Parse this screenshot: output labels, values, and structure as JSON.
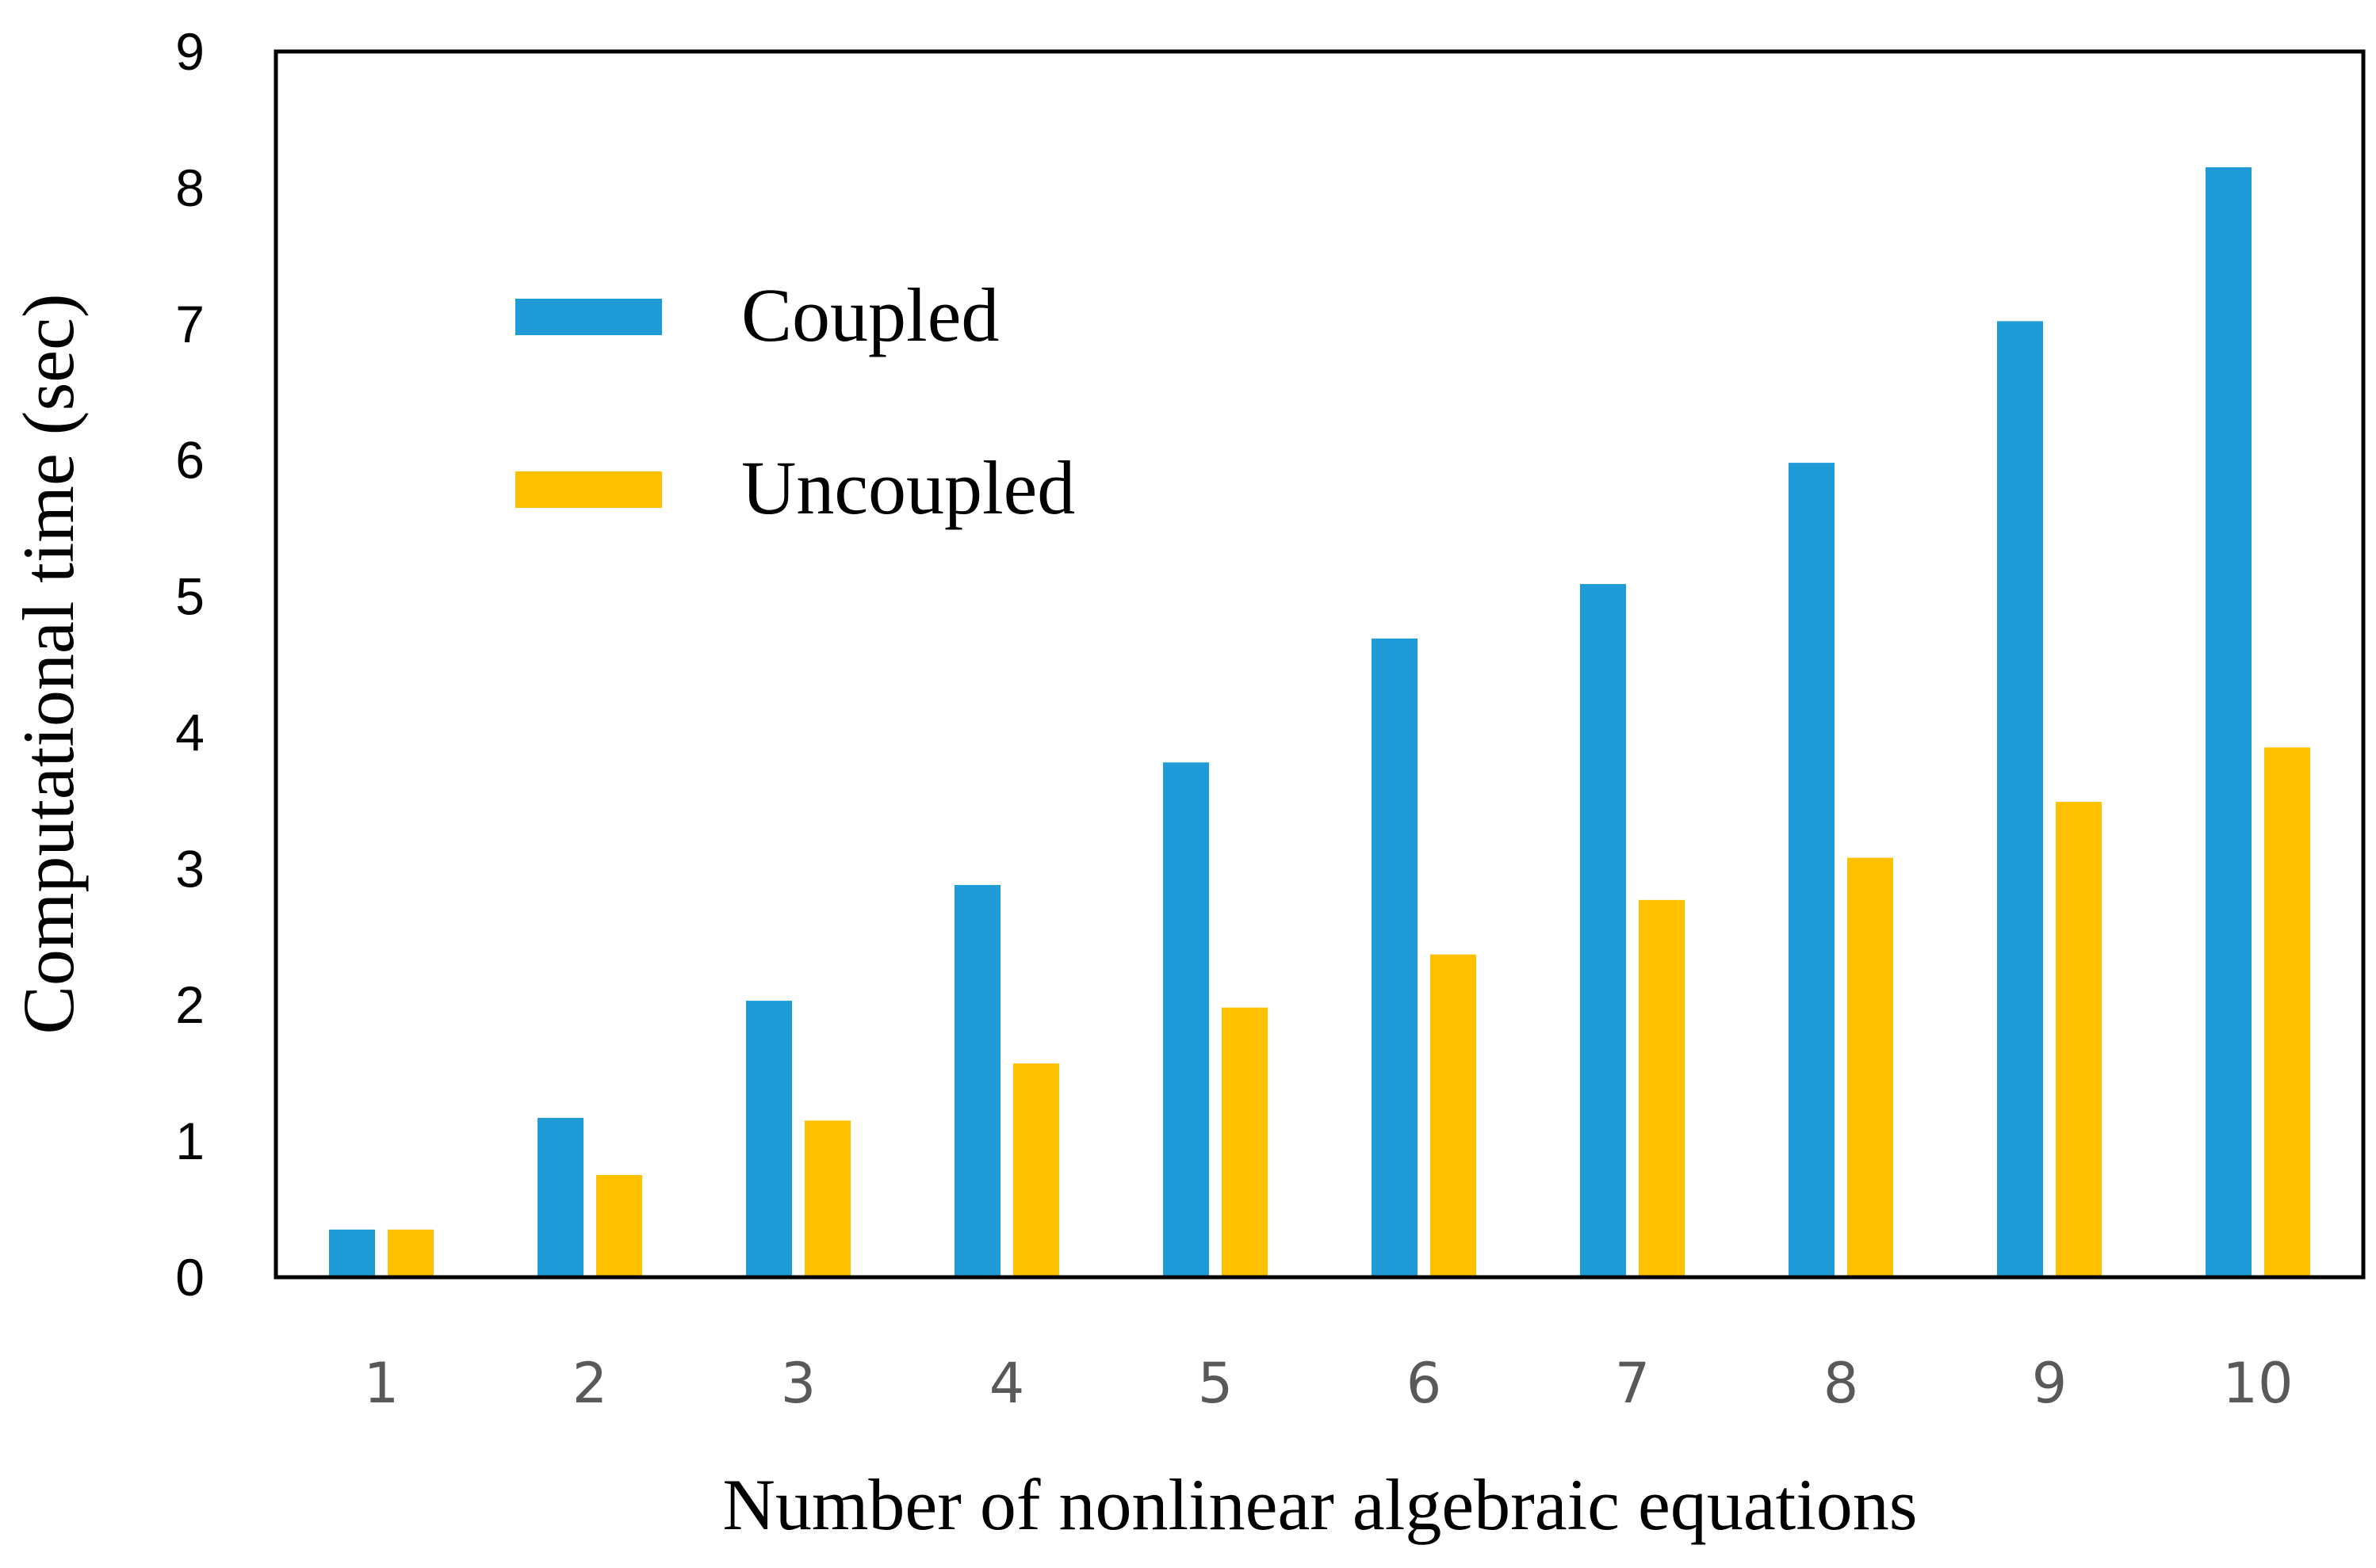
{
  "chart_data": {
    "type": "bar",
    "title": "",
    "xlabel": "Number of nonlinear algebraic equations",
    "ylabel": "Computational time (sec)",
    "categories": [
      "1",
      "2",
      "3",
      "4",
      "5",
      "6",
      "7",
      "8",
      "9",
      "10"
    ],
    "yticks": [
      "0",
      "1",
      "2",
      "3",
      "4",
      "5",
      "6",
      "7",
      "8",
      "9"
    ],
    "ylim": [
      0,
      9
    ],
    "grid": false,
    "legend_position": "top-left",
    "series": [
      {
        "name": "Coupled",
        "color": "#1f9bd7",
        "values": [
          0.35,
          1.17,
          2.03,
          2.88,
          3.78,
          4.69,
          5.09,
          5.98,
          7.02,
          8.15
        ]
      },
      {
        "name": "Uncoupled",
        "color": "#ffc000",
        "values": [
          0.35,
          0.75,
          1.15,
          1.57,
          1.98,
          2.37,
          2.77,
          3.08,
          3.49,
          3.89
        ]
      }
    ]
  }
}
